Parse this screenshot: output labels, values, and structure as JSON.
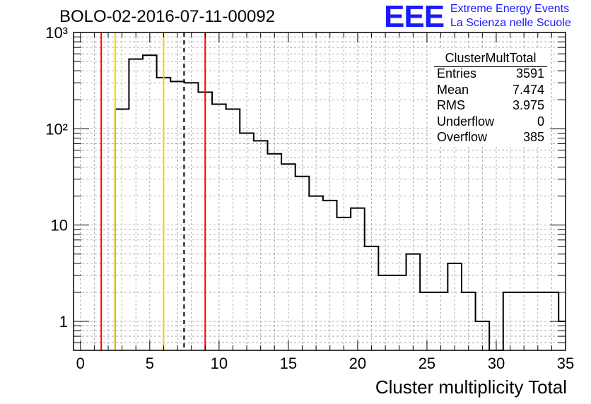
{
  "title": "BOLO-02-2016-07-11-00092",
  "logo": {
    "mark": "EEE",
    "line1": "Extreme Energy Events",
    "line2": "La Scienza nelle Scuole",
    "color": "#1a1aff"
  },
  "stats": {
    "name": "ClusterMultTotal",
    "rows": [
      {
        "key": "Entries",
        "value": "3591"
      },
      {
        "key": "Mean",
        "value": "7.474"
      },
      {
        "key": "RMS",
        "value": "3.975"
      },
      {
        "key": "Underflow",
        "value": "0"
      },
      {
        "key": "Overflow",
        "value": "385"
      }
    ]
  },
  "chart_data": {
    "type": "histogram",
    "title": "BOLO-02-2016-07-11-00092",
    "xlabel": "Cluster multiplicity Total",
    "ylabel": "",
    "xlim": [
      -0.5,
      35.0
    ],
    "ylim": [
      0.5,
      1000
    ],
    "ylog": true,
    "grid": true,
    "x_ticks": [
      "0",
      "5",
      "10",
      "15",
      "20",
      "25",
      "30",
      "35"
    ],
    "y_ticks": [
      "1",
      "10",
      "10²",
      "10³"
    ],
    "bin_edges": [
      2.5,
      3.5,
      4.5,
      5.5,
      6.5,
      7.5,
      8.5,
      9.5,
      10.5,
      11.5,
      12.5,
      13.5,
      14.5,
      15.5,
      16.5,
      17.5,
      18.5,
      19.5,
      20.5,
      21.5,
      22.5,
      23.5,
      24.5,
      25.5,
      26.5,
      27.5,
      28.5,
      29.5,
      30.5,
      31.5,
      32.5,
      33.5,
      34.5,
      35.0
    ],
    "counts": [
      160,
      530,
      580,
      340,
      310,
      300,
      240,
      180,
      160,
      90,
      75,
      55,
      43,
      32,
      20,
      18,
      12,
      15,
      6,
      3,
      3,
      5,
      2,
      2,
      4,
      2,
      1,
      0,
      2,
      2,
      2,
      2,
      1
    ],
    "vertical_lines": [
      {
        "x": 1.5,
        "color": "#ff0000",
        "style": "solid"
      },
      {
        "x": 2.5,
        "color": "#ffcc00",
        "style": "solid"
      },
      {
        "x": 6.0,
        "color": "#ffcc00",
        "style": "solid"
      },
      {
        "x": 7.474,
        "color": "#000000",
        "style": "dashed"
      },
      {
        "x": 9.0,
        "color": "#ff0000",
        "style": "solid"
      }
    ],
    "line_color": "#000000",
    "legend_position": "top-right"
  }
}
